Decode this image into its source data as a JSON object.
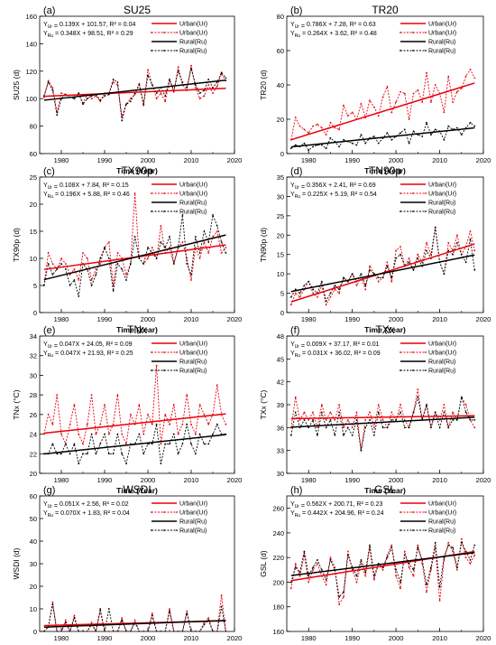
{
  "figure": {
    "legend_entries": [
      "Urban(Ur)",
      "Urban(Ur)",
      "Rural(Ru)",
      "Rural(Ru)"
    ],
    "colors": {
      "urban": "#e8000b",
      "rural": "#000000"
    }
  },
  "chart_data": [
    {
      "type": "line",
      "panel": "(a)",
      "title": "SU25",
      "xlabel": "Time (Year)",
      "ylabel": "SU25 (d)",
      "xlim": [
        1975,
        2020
      ],
      "ylim": [
        60,
        160
      ],
      "xticks": [
        1980,
        1990,
        2000,
        2010,
        2020
      ],
      "yticks": [
        60,
        80,
        100,
        120,
        140,
        160
      ],
      "eq_ur": "0.139X + 101.57, R² = 0.04",
      "eq_ru": "0.348X + 98.51, R² = 0.29",
      "trend_ur": [
        0.139,
        101.57
      ],
      "trend_ru": [
        0.348,
        98.51
      ],
      "x_start": 1976,
      "legend": "top-right",
      "series": [
        {
          "name": "Urban(Ur)",
          "values": [
            101,
            113,
            108,
            90,
            104,
            103,
            101,
            100,
            104,
            97,
            103,
            100,
            102,
            98,
            104,
            104,
            112,
            110,
            87,
            96,
            100,
            103,
            111,
            95,
            121,
            110,
            100,
            104,
            98,
            113,
            105,
            123,
            110,
            106,
            124,
            108,
            100,
            102,
            110,
            104,
            109,
            118,
            113
          ]
        },
        {
          "name": "Rural(Ru)",
          "values": [
            102,
            112,
            106,
            88,
            100,
            103,
            101,
            100,
            104,
            96,
            100,
            102,
            103,
            99,
            102,
            103,
            114,
            112,
            84,
            96,
            98,
            104,
            110,
            96,
            117,
            110,
            104,
            108,
            102,
            114,
            106,
            120,
            112,
            108,
            122,
            110,
            104,
            106,
            114,
            108,
            112,
            119,
            115
          ]
        }
      ]
    },
    {
      "type": "line",
      "panel": "(b)",
      "title": "TR20",
      "xlabel": "Time (Year)",
      "ylabel": "TR20 (d)",
      "xlim": [
        1975,
        2020
      ],
      "ylim": [
        0,
        80
      ],
      "xticks": [
        1980,
        1990,
        2000,
        2010,
        2020
      ],
      "yticks": [
        0,
        20,
        40,
        60,
        80
      ],
      "eq_ur": "0.786X + 7.28, R² = 0.63",
      "eq_ru": "0.264X + 3.62, R² = 0.48",
      "trend_ur": [
        0.786,
        7.28
      ],
      "trend_ru": [
        0.264,
        3.62
      ],
      "x_start": 1976,
      "legend": "top-right",
      "series": [
        {
          "name": "Urban(Ur)",
          "values": [
            8,
            21,
            16,
            14,
            12,
            16,
            17,
            15,
            11,
            18,
            15,
            14,
            28,
            22,
            24,
            20,
            29,
            21,
            31,
            27,
            22,
            33,
            39,
            24,
            30,
            36,
            35,
            20,
            35,
            37,
            30,
            47,
            30,
            40,
            35,
            24,
            45,
            30,
            36,
            38,
            45,
            49,
            44
          ]
        },
        {
          "name": "Rural(Ru)",
          "values": [
            3,
            5,
            4,
            6,
            2,
            4,
            5,
            5,
            3,
            9,
            7,
            4,
            8,
            7,
            6,
            5,
            11,
            6,
            9,
            10,
            6,
            9,
            12,
            8,
            10,
            12,
            14,
            6,
            13,
            11,
            10,
            18,
            11,
            14,
            13,
            8,
            16,
            14,
            15,
            11,
            15,
            18,
            16
          ]
        }
      ]
    },
    {
      "type": "line",
      "panel": "(c)",
      "title": "TX90p",
      "xlabel": "Time (Year)",
      "ylabel": "TX90p (d)",
      "xlim": [
        1975,
        2020
      ],
      "ylim": [
        0,
        25
      ],
      "xticks": [
        1980,
        1990,
        2000,
        2010,
        2020
      ],
      "yticks": [
        0,
        5,
        10,
        15,
        20,
        25
      ],
      "eq_ur": "0.108X + 7.84, R² = 0.15",
      "eq_ru": "0.196X + 5.88, R² = 0.46",
      "trend_ur": [
        0.108,
        7.84
      ],
      "trend_ru": [
        0.196,
        5.88
      ],
      "x_start": 1976,
      "legend": "top-right",
      "series": [
        {
          "name": "Urban(Ur)",
          "values": [
            5,
            11,
            9,
            8,
            10,
            9,
            7,
            8,
            6,
            11,
            10,
            6,
            8,
            9,
            12,
            13,
            5,
            11,
            10,
            7,
            9,
            22,
            10,
            9,
            10,
            12,
            10,
            16,
            11,
            12,
            9,
            12,
            13,
            10,
            6,
            12,
            10,
            13,
            11,
            14,
            15,
            11,
            12
          ]
        },
        {
          "name": "Rural(Ru)",
          "values": [
            5,
            9,
            7,
            8,
            9,
            8,
            5,
            6,
            3,
            9,
            8,
            5,
            7,
            10,
            12,
            10,
            4,
            9,
            8,
            6,
            9,
            14,
            10,
            9,
            12,
            11,
            10,
            13,
            12,
            14,
            9,
            12,
            18,
            9,
            7,
            14,
            11,
            15,
            13,
            18,
            16,
            13,
            11
          ]
        }
      ]
    },
    {
      "type": "line",
      "panel": "(d)",
      "title": "TN90p",
      "xlabel": "Time (Year)",
      "ylabel": "TN90p (d)",
      "xlim": [
        1975,
        2020
      ],
      "ylim": [
        0,
        35
      ],
      "xticks": [
        1980,
        1990,
        2000,
        2010,
        2020
      ],
      "yticks": [
        0,
        5,
        10,
        15,
        20,
        25,
        30,
        35
      ],
      "eq_ur": "0.356X + 2.41, R² = 0.69",
      "eq_ru": "0.225X + 5.19, R² = 0.54",
      "trend_ur": [
        0.356,
        2.41
      ],
      "trend_ru": [
        0.225,
        5.19
      ],
      "x_start": 1976,
      "legend": "top-right",
      "series": [
        {
          "name": "Urban(Ur)",
          "values": [
            2,
            5,
            4,
            6,
            8,
            5,
            4,
            7,
            2,
            4,
            6,
            5,
            9,
            8,
            10,
            7,
            9,
            6,
            12,
            10,
            8,
            9,
            13,
            8,
            16,
            17,
            12,
            14,
            11,
            15,
            13,
            18,
            15,
            22,
            13,
            10,
            18,
            16,
            20,
            15,
            17,
            21,
            16
          ]
        },
        {
          "name": "Rural(Ru)",
          "values": [
            4,
            6,
            5,
            7,
            8,
            6,
            5,
            8,
            3,
            5,
            7,
            6,
            9,
            8,
            10,
            8,
            10,
            7,
            11,
            10,
            9,
            9,
            12,
            9,
            14,
            15,
            12,
            13,
            11,
            14,
            12,
            16,
            14,
            22,
            13,
            10,
            16,
            15,
            18,
            15,
            13,
            19,
            11
          ]
        }
      ]
    },
    {
      "type": "line",
      "panel": "(e)",
      "title": "TNx",
      "xlabel": "Time (Year)",
      "ylabel": "TNx (°C)",
      "xlim": [
        1975,
        2020
      ],
      "ylim": [
        20,
        34
      ],
      "xticks": [
        1980,
        1990,
        2000,
        2010,
        2020
      ],
      "yticks": [
        20,
        22,
        24,
        26,
        28,
        30,
        32,
        34
      ],
      "eq_ur": "0.047X + 24.05, R² = 0.09",
      "eq_ru": "0.047X + 21.93, R² = 0.25",
      "trend_ur": [
        0.047,
        24.05
      ],
      "trend_ru": [
        0.047,
        21.93
      ],
      "x_start": 1976,
      "legend": "top-right",
      "series": [
        {
          "name": "Urban(Ur)",
          "values": [
            24,
            26,
            25,
            28,
            24,
            23,
            25,
            27,
            24,
            23,
            25,
            28,
            24,
            25,
            27,
            24,
            25,
            28,
            24,
            23,
            26,
            25,
            27,
            24,
            26,
            25,
            31,
            23,
            26,
            25,
            27,
            24,
            25,
            28,
            25,
            24,
            27,
            26,
            25,
            26,
            29,
            26,
            25
          ]
        },
        {
          "name": "Rural(Ru)",
          "values": [
            22,
            22,
            23,
            22,
            22,
            23,
            22,
            23,
            21,
            22,
            22,
            24,
            22,
            23,
            24,
            22,
            22,
            24,
            22,
            21,
            23,
            23,
            24,
            22,
            23,
            23,
            25,
            21,
            23,
            23,
            24,
            22,
            23,
            25,
            23,
            22,
            24,
            23,
            23,
            24,
            25,
            24,
            24
          ]
        }
      ]
    },
    {
      "type": "line",
      "panel": "(f)",
      "title": "TXx",
      "xlabel": "Time (Year)",
      "ylabel": "TXx (°C)",
      "xlim": [
        1975,
        2020
      ],
      "ylim": [
        30,
        48
      ],
      "xticks": [
        1980,
        1990,
        2000,
        2010,
        2020
      ],
      "yticks": [
        30,
        33,
        36,
        39,
        42,
        45,
        48
      ],
      "eq_ur": "0.009X + 37.17, R² = 0.01",
      "eq_ru": "0.031X + 36.02, R² = 0.09",
      "trend_ur": [
        0.009,
        37.17
      ],
      "trend_ru": [
        0.031,
        36.02
      ],
      "x_start": 1976,
      "legend": "top-right",
      "series": [
        {
          "name": "Urban(Ur)",
          "values": [
            36,
            40,
            37,
            38,
            37,
            38,
            36,
            39,
            37,
            38,
            37,
            39,
            36,
            37,
            36,
            38,
            33,
            37,
            38,
            36,
            39,
            37,
            36,
            38,
            37,
            39,
            37,
            36,
            38,
            41,
            37,
            39,
            36,
            38,
            37,
            39,
            36,
            38,
            37,
            40,
            39,
            37,
            36
          ]
        },
        {
          "name": "Rural(Ru)",
          "values": [
            35,
            38,
            36,
            37,
            36,
            37,
            35,
            38,
            36,
            37,
            35,
            38,
            35,
            36,
            35,
            37,
            33,
            36,
            37,
            35,
            38,
            36,
            36,
            37,
            37,
            38,
            36,
            36,
            38,
            40,
            37,
            39,
            36,
            38,
            36,
            38,
            36,
            37,
            37,
            40,
            38,
            37,
            37
          ]
        }
      ]
    },
    {
      "type": "line",
      "panel": "(g)",
      "title": "WSDI",
      "xlabel": "Time (Year)",
      "ylabel": "WSDI (d)",
      "xlim": [
        1975,
        2020
      ],
      "ylim": [
        0,
        60
      ],
      "xticks": [
        1980,
        1990,
        2000,
        2010,
        2020
      ],
      "yticks": [
        0,
        10,
        20,
        30,
        40,
        50,
        60
      ],
      "eq_ur": "0.051X + 2.56, R² = 0.02",
      "eq_ru": "0.070X + 1.83, R² = 0.04",
      "trend_ur": [
        0.051,
        2.56
      ],
      "trend_ru": [
        0.07,
        1.83
      ],
      "x_start": 1976,
      "legend": "top-right",
      "series": [
        {
          "name": "Urban(Ur)",
          "values": [
            0,
            2,
            13,
            0,
            0,
            5,
            0,
            7,
            0,
            0,
            0,
            4,
            0,
            9,
            0,
            0,
            0,
            0,
            6,
            0,
            0,
            5,
            0,
            0,
            0,
            8,
            0,
            0,
            0,
            10,
            0,
            0,
            0,
            9,
            0,
            0,
            0,
            4,
            6,
            0,
            0,
            16,
            0
          ]
        },
        {
          "name": "Rural(Ru)",
          "values": [
            0,
            2,
            12,
            0,
            0,
            4,
            0,
            6,
            0,
            0,
            0,
            3,
            0,
            10,
            0,
            10,
            0,
            0,
            5,
            0,
            0,
            4,
            0,
            0,
            0,
            7,
            0,
            0,
            0,
            9,
            0,
            0,
            0,
            8,
            0,
            0,
            0,
            3,
            5,
            0,
            0,
            11,
            0
          ]
        }
      ]
    },
    {
      "type": "line",
      "panel": "(h)",
      "title": "GSL",
      "xlabel": "Time (Year)",
      "ylabel": "GSL (d)",
      "xlim": [
        1975,
        2020
      ],
      "ylim": [
        160,
        270
      ],
      "xticks": [
        1980,
        1990,
        2000,
        2010,
        2020
      ],
      "yticks": [
        160,
        180,
        200,
        220,
        240,
        260
      ],
      "eq_ur": "0.562X + 200.71, R² = 0.23",
      "eq_ru": "0.442X + 204.96, R² = 0.24",
      "trend_ur": [
        0.562,
        200.71
      ],
      "trend_ru": [
        0.442,
        204.96
      ],
      "x_start": 1976,
      "legend": "top-right",
      "series": [
        {
          "name": "Urban(Ur)",
          "values": [
            195,
            215,
            205,
            222,
            200,
            210,
            215,
            205,
            198,
            220,
            212,
            182,
            188,
            225,
            210,
            200,
            215,
            205,
            228,
            202,
            215,
            210,
            222,
            230,
            205,
            195,
            225,
            212,
            205,
            230,
            215,
            192,
            210,
            228,
            185,
            218,
            232,
            225,
            210,
            235,
            220,
            215,
            222
          ]
        },
        {
          "name": "Rural(Ru)",
          "values": [
            200,
            212,
            208,
            225,
            205,
            212,
            218,
            210,
            202,
            218,
            210,
            188,
            192,
            222,
            212,
            205,
            218,
            208,
            230,
            205,
            215,
            212,
            220,
            228,
            210,
            200,
            222,
            215,
            210,
            228,
            218,
            198,
            212,
            232,
            196,
            220,
            230,
            228,
            212,
            232,
            225,
            218,
            230
          ]
        }
      ]
    }
  ]
}
